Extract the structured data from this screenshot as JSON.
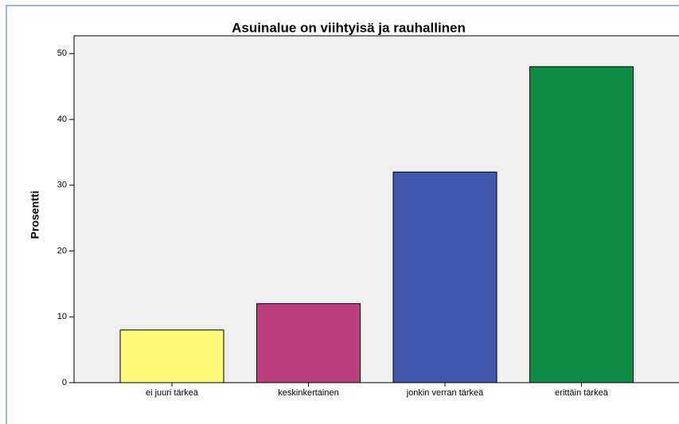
{
  "chart_data": {
    "type": "bar",
    "title": "Asuinalue on viihtyisä ja rauhallinen",
    "y_label": "Prosentti",
    "categories": [
      "ei juuri tärkeä",
      "keskinkertainen",
      "jonkin verran tärkeä",
      "erittäin tärkeä"
    ],
    "values": [
      8,
      12,
      32,
      48
    ],
    "colors": [
      "#fafa78",
      "#bc3f7c",
      "#3f58ad",
      "#0f8c47"
    ],
    "ylim": [
      0,
      52.7
    ],
    "yticks": [
      0,
      10,
      20,
      30,
      40,
      50
    ],
    "grid": false
  }
}
